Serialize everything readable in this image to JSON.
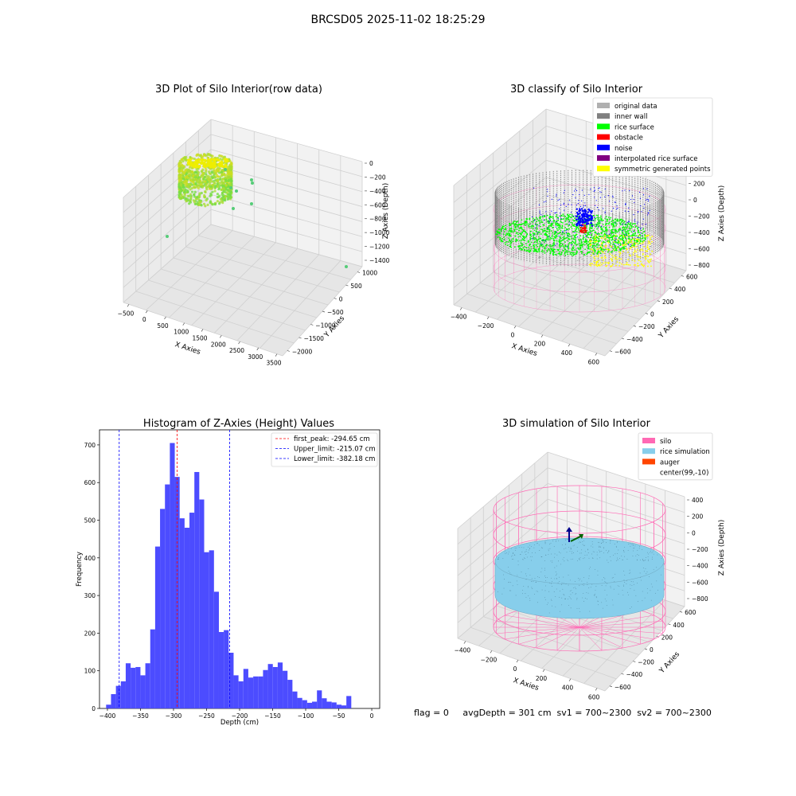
{
  "page": {
    "title": "BRCSD05 2025-11-02 18:25:29"
  },
  "colors": {
    "original": "#b0b0b0",
    "inner_wall": "#808080",
    "rice_surface": "#00ff00",
    "obstacle": "#ff0000",
    "noise": "#0000ff",
    "interpolated": "#800080",
    "symmetric": "#ffff00",
    "silo": "#ff69b4",
    "rice_sim": "#87ceeb",
    "auger": "#ff4500",
    "hist_bar": "#4c4cff"
  },
  "chart_data": [
    {
      "id": "raw",
      "type": "scatter",
      "title": "3D Plot of Silo Interior(row data)",
      "xlabel": "X Axies",
      "ylabel": "Y Axies",
      "zlabel": "Z Axies (Depth)",
      "x_ticks": [
        "−500",
        "0",
        "500",
        "1000",
        "1500",
        "2000",
        "2500",
        "3000",
        "3500"
      ],
      "y_ticks": [
        "−2000",
        "−1500",
        "−1000",
        "−500",
        "0",
        "500",
        "1000"
      ],
      "z_ticks": [
        "0",
        "−200",
        "−400",
        "−600",
        "−800",
        "−1000",
        "−1200",
        "−1400"
      ]
    },
    {
      "id": "classify",
      "type": "scatter",
      "title": "3D classify of Silo Interior",
      "xlabel": "X Axies",
      "ylabel": "Y Axies",
      "zlabel": "Z Axies (Depth)",
      "x_ticks": [
        "−400",
        "−200",
        "0",
        "200",
        "400",
        "600"
      ],
      "y_ticks": [
        "−600",
        "−400",
        "−200",
        "0",
        "200",
        "400",
        "600"
      ],
      "z_ticks": [
        "400",
        "200",
        "0",
        "−200",
        "−400",
        "−600",
        "−800"
      ],
      "legend": [
        {
          "label": "original data",
          "color": "#b0b0b0"
        },
        {
          "label": "inner wall",
          "color": "#808080"
        },
        {
          "label": "rice surface",
          "color": "#00ff00"
        },
        {
          "label": "obstacle",
          "color": "#ff0000"
        },
        {
          "label": "noise",
          "color": "#0000ff"
        },
        {
          "label": "interpolated rice surface",
          "color": "#800080"
        },
        {
          "label": "symmetric generated points",
          "color": "#ffff00"
        }
      ]
    },
    {
      "id": "hist",
      "type": "bar",
      "title": "Histogram of Z-Axies (Height) Values",
      "xlabel": "Depth (cm)",
      "ylabel": "Frequency",
      "xlim": [
        -412,
        12
      ],
      "ylim": [
        0,
        740
      ],
      "x_ticks": [
        -400,
        -350,
        -300,
        -250,
        -200,
        -150,
        -100,
        -50,
        0
      ],
      "y_ticks": [
        0,
        100,
        200,
        300,
        400,
        500,
        600,
        700
      ],
      "bin_start": -402,
      "bin_width": 7.42,
      "values": [
        10,
        38,
        60,
        72,
        120,
        108,
        110,
        88,
        120,
        210,
        430,
        530,
        595,
        705,
        615,
        505,
        480,
        520,
        628,
        555,
        415,
        420,
        310,
        203,
        208,
        148,
        88,
        72,
        105,
        82,
        85,
        85,
        102,
        118,
        110,
        122,
        100,
        76,
        45,
        28,
        22,
        15,
        18,
        48,
        27,
        18,
        16,
        10,
        8,
        33
      ],
      "vlines": [
        {
          "label": "first_peak: -294.65 cm",
          "x": -294.65,
          "color": "#ff0000"
        },
        {
          "label": "Upper_limit: -215.07 cm",
          "x": -215.07,
          "color": "#0000ff"
        },
        {
          "label": "Lower_limit: -382.18 cm",
          "x": -382.18,
          "color": "#0000ff"
        }
      ]
    },
    {
      "id": "sim",
      "type": "scatter",
      "title": "3D simulation of Silo Interior",
      "xlabel": "X Axies",
      "ylabel": "Y Axies",
      "zlabel": "Z Axies (Depth)",
      "x_ticks": [
        "−400",
        "−200",
        "0",
        "200",
        "400",
        "600"
      ],
      "y_ticks": [
        "−600",
        "−400",
        "−200",
        "0",
        "200",
        "400",
        "600"
      ],
      "z_ticks": [
        "400",
        "200",
        "0",
        "−200",
        "−400",
        "−600",
        "−800"
      ],
      "legend": [
        {
          "label": "silo",
          "color": "#ff69b4"
        },
        {
          "label": "rice simulation",
          "color": "#87ceeb"
        },
        {
          "label": "auger",
          "color": "#ff4500"
        },
        {
          "label": "center(99,-10)",
          "color": ""
        }
      ]
    }
  ],
  "footer": {
    "status": "flag = 0     avgDepth = 301 cm  sv1 = 700~2300  sv2 = 700~2300"
  }
}
